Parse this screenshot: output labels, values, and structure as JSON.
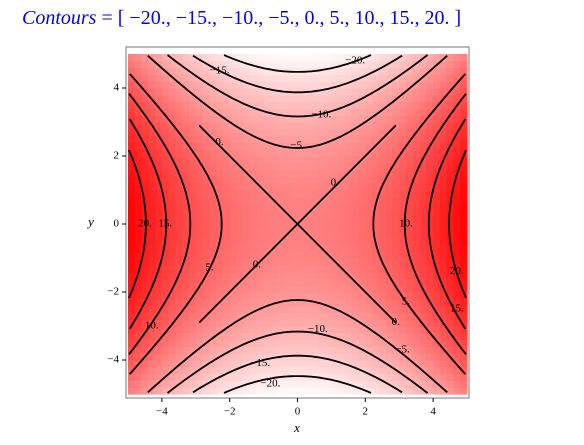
{
  "chart_data": {
    "type": "contour",
    "title": {
      "name": "Contours",
      "text": "= [ −20., −15., −10., −5., 0., 5., 10., 15., 20. ]"
    },
    "xlabel": "x",
    "ylabel": "y",
    "levels": [
      {
        "value": -20,
        "label": "−20."
      },
      {
        "value": -15,
        "label": "−15."
      },
      {
        "value": -10,
        "label": "−10."
      },
      {
        "value": -5,
        "label": "−5."
      },
      {
        "value": 0,
        "label": "0."
      },
      {
        "value": 5,
        "label": "5."
      },
      {
        "value": 10,
        "label": "10."
      },
      {
        "value": 15,
        "label": "15."
      },
      {
        "value": 20,
        "label": "20."
      }
    ],
    "xlim": [
      -5,
      5
    ],
    "ylim": [
      -5,
      5
    ],
    "xticks": [
      {
        "value": -4,
        "label": "−4"
      },
      {
        "value": -2,
        "label": "−2"
      },
      0,
      2,
      4
    ],
    "yticks": [
      {
        "value": -4,
        "label": "−4"
      },
      {
        "value": -2,
        "label": "−2"
      },
      0,
      2,
      4
    ],
    "line_color": "#000000",
    "low_color": "#ffffff",
    "high_color": "#ff0000",
    "title_color": "#0000ff"
  }
}
